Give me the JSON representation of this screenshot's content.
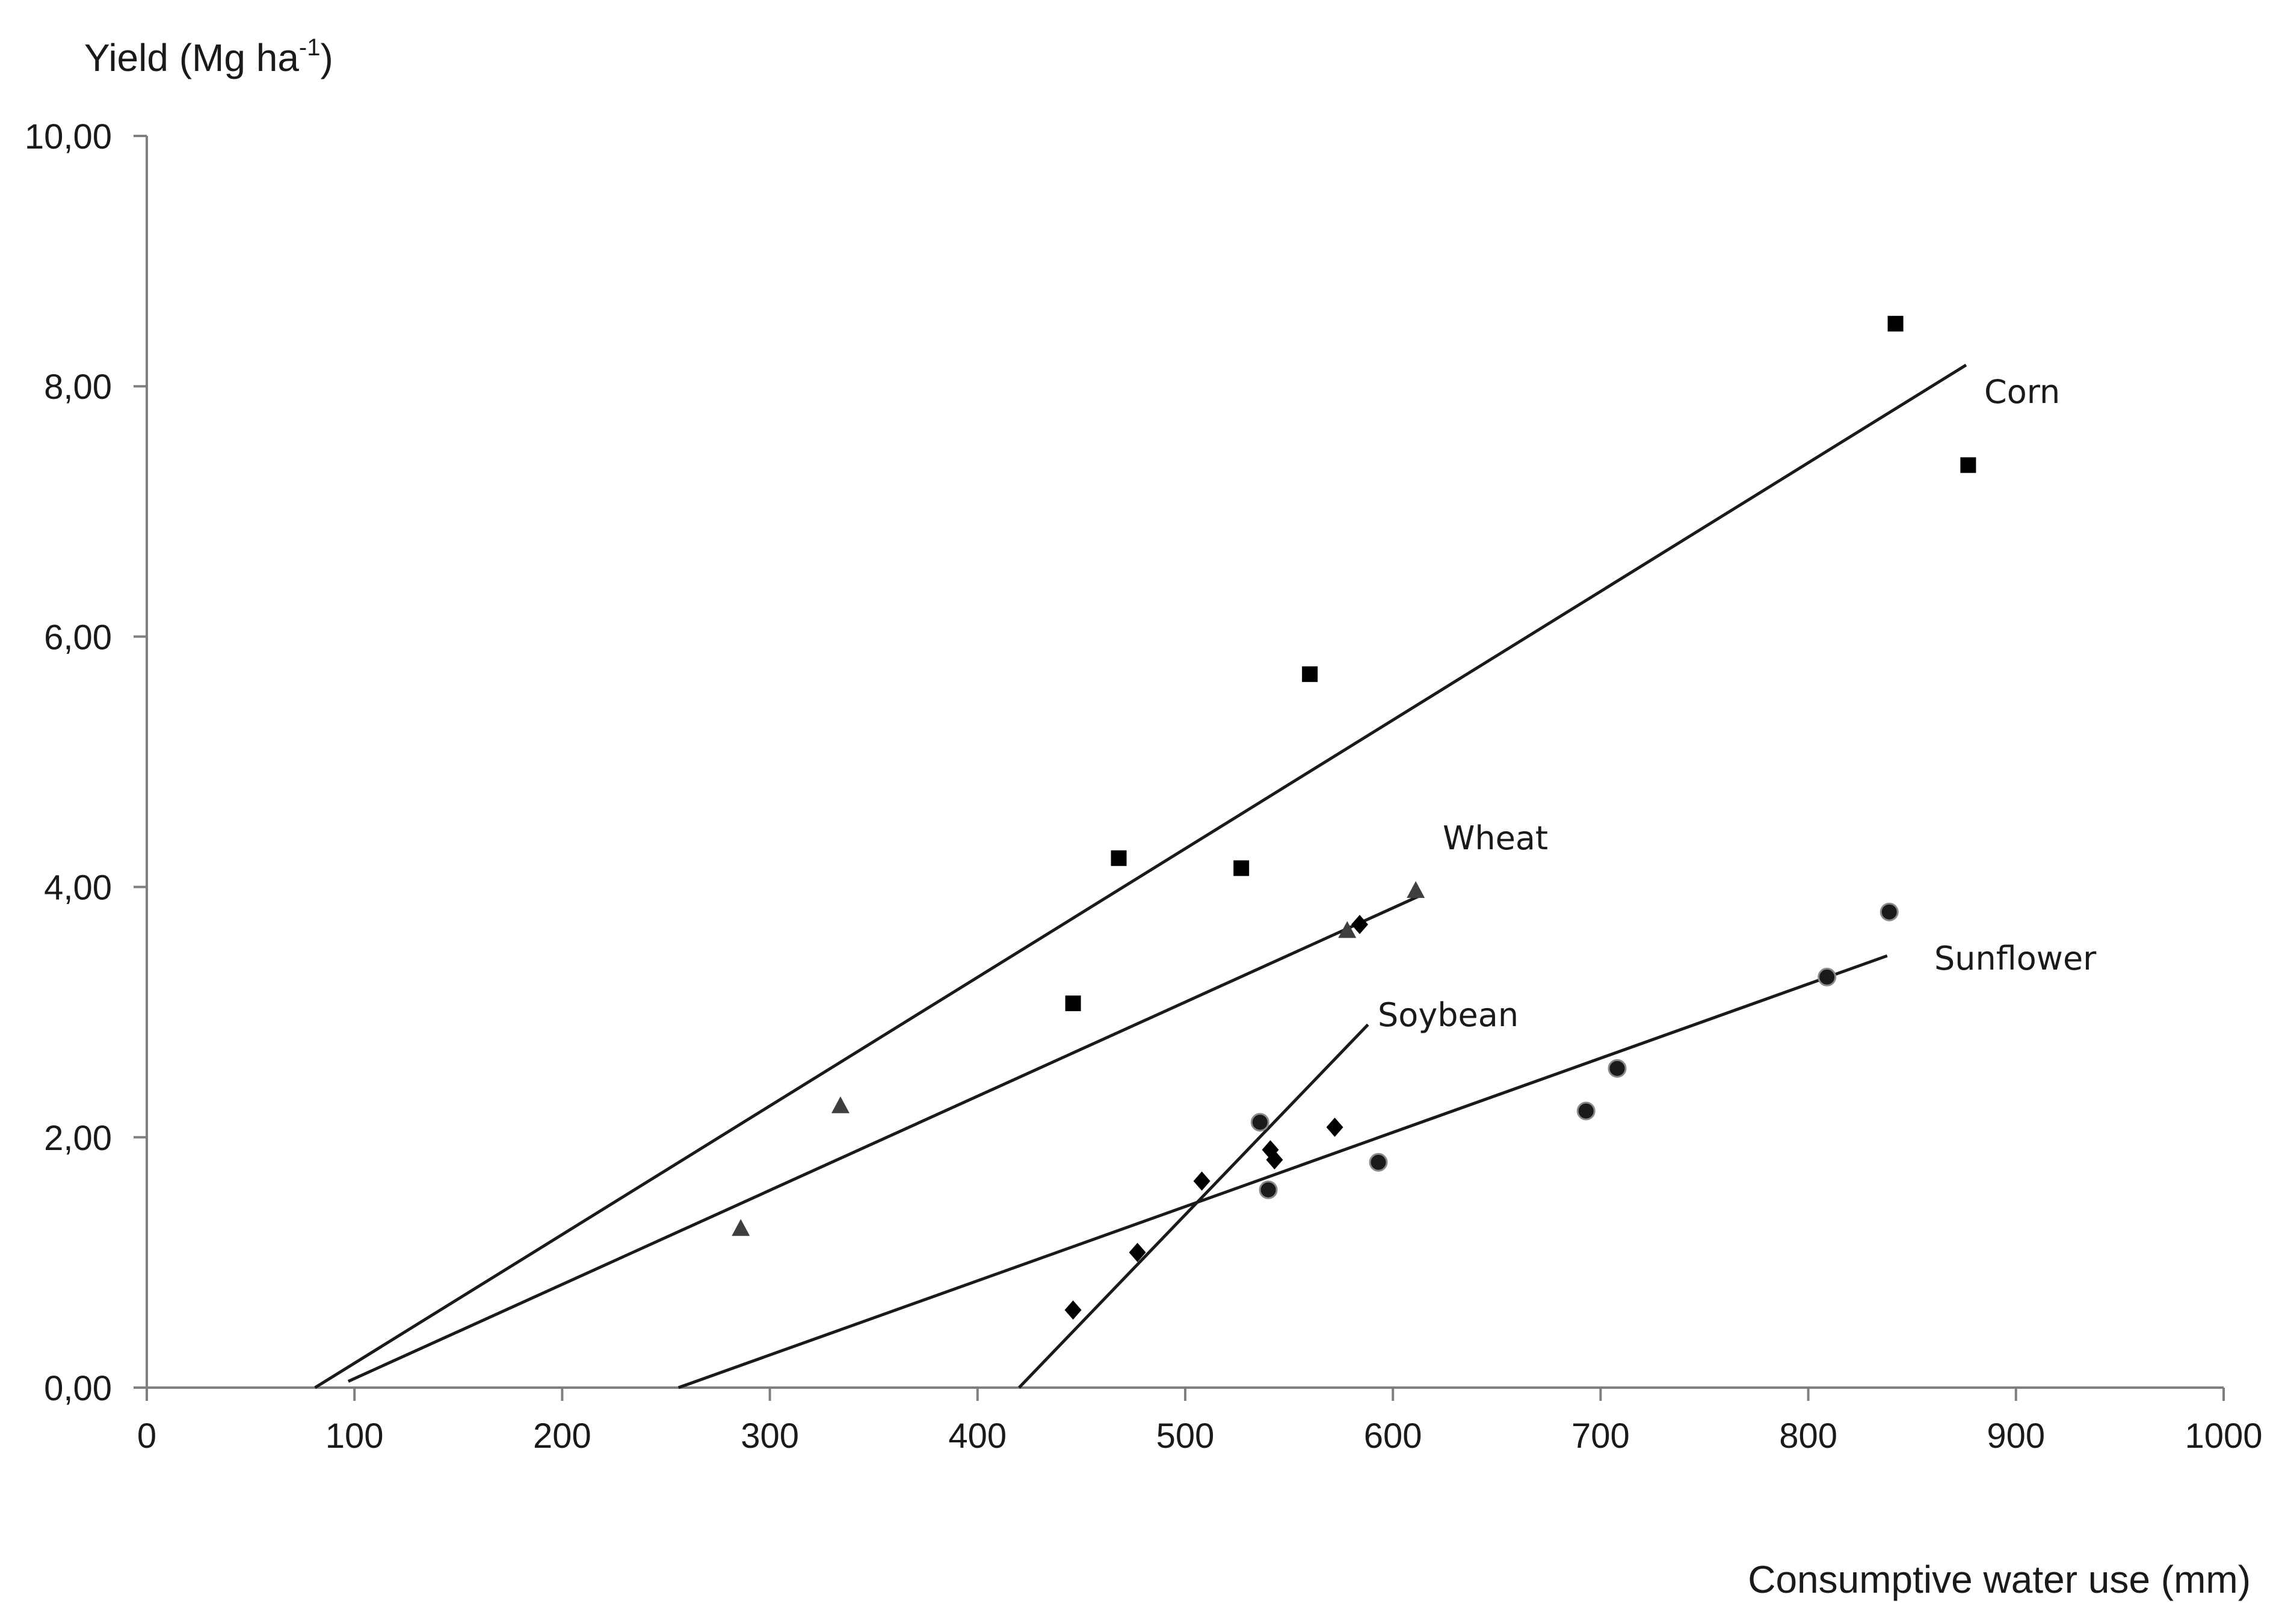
{
  "chart_data": {
    "type": "scatter",
    "ylabel": "Yield (Mg ha",
    "ylabel_sup": "-1",
    "ylabel_close": ")",
    "xlabel": "Consumptive water use (mm)",
    "xlim": [
      0,
      1000
    ],
    "ylim": [
      0,
      10
    ],
    "x_ticks": [
      0,
      100,
      200,
      300,
      400,
      500,
      600,
      700,
      800,
      900,
      1000
    ],
    "y_ticks": [
      0,
      2,
      4,
      6,
      8,
      10
    ],
    "y_tick_labels": [
      "0,00",
      "2,00",
      "4,00",
      "6,00",
      "8,00",
      "10,00"
    ],
    "grid": false,
    "series": [
      {
        "name": "Corn",
        "marker": "square",
        "points": [
          [
            446,
            3.07
          ],
          [
            468,
            4.23
          ],
          [
            527,
            4.15
          ],
          [
            560,
            5.7
          ],
          [
            842,
            8.5
          ],
          [
            877,
            7.37
          ]
        ],
        "fit": [
          [
            81,
            0.0
          ],
          [
            876,
            8.17
          ]
        ]
      },
      {
        "name": "Wheat",
        "marker": "triangle",
        "points": [
          [
            286,
            1.27
          ],
          [
            334,
            2.25
          ],
          [
            578,
            3.65
          ],
          [
            611,
            3.97
          ]
        ],
        "fit": [
          [
            97,
            0.05
          ],
          [
            613,
            3.93
          ]
        ]
      },
      {
        "name": "Soybean",
        "marker": "diamond",
        "points": [
          [
            446,
            0.62
          ],
          [
            477,
            1.08
          ],
          [
            508,
            1.65
          ],
          [
            541,
            1.9
          ],
          [
            543,
            1.82
          ],
          [
            572,
            2.08
          ],
          [
            584,
            3.7
          ]
        ],
        "fit": [
          [
            420,
            0.0
          ],
          [
            588,
            2.9
          ]
        ]
      },
      {
        "name": "Sunflower",
        "marker": "circle",
        "points": [
          [
            536,
            2.12
          ],
          [
            540,
            1.58
          ],
          [
            593,
            1.8
          ],
          [
            693,
            2.21
          ],
          [
            708,
            2.55
          ],
          [
            809,
            3.28
          ],
          [
            839,
            3.8
          ]
        ],
        "fit": [
          [
            256,
            0.0
          ],
          [
            838,
            3.45
          ]
        ]
      }
    ],
    "annotations": {
      "corn_label": "Corn",
      "wheat_label": "Wheat",
      "soybean_label": "Soybean",
      "sunflower_label": "Sunflower"
    }
  }
}
